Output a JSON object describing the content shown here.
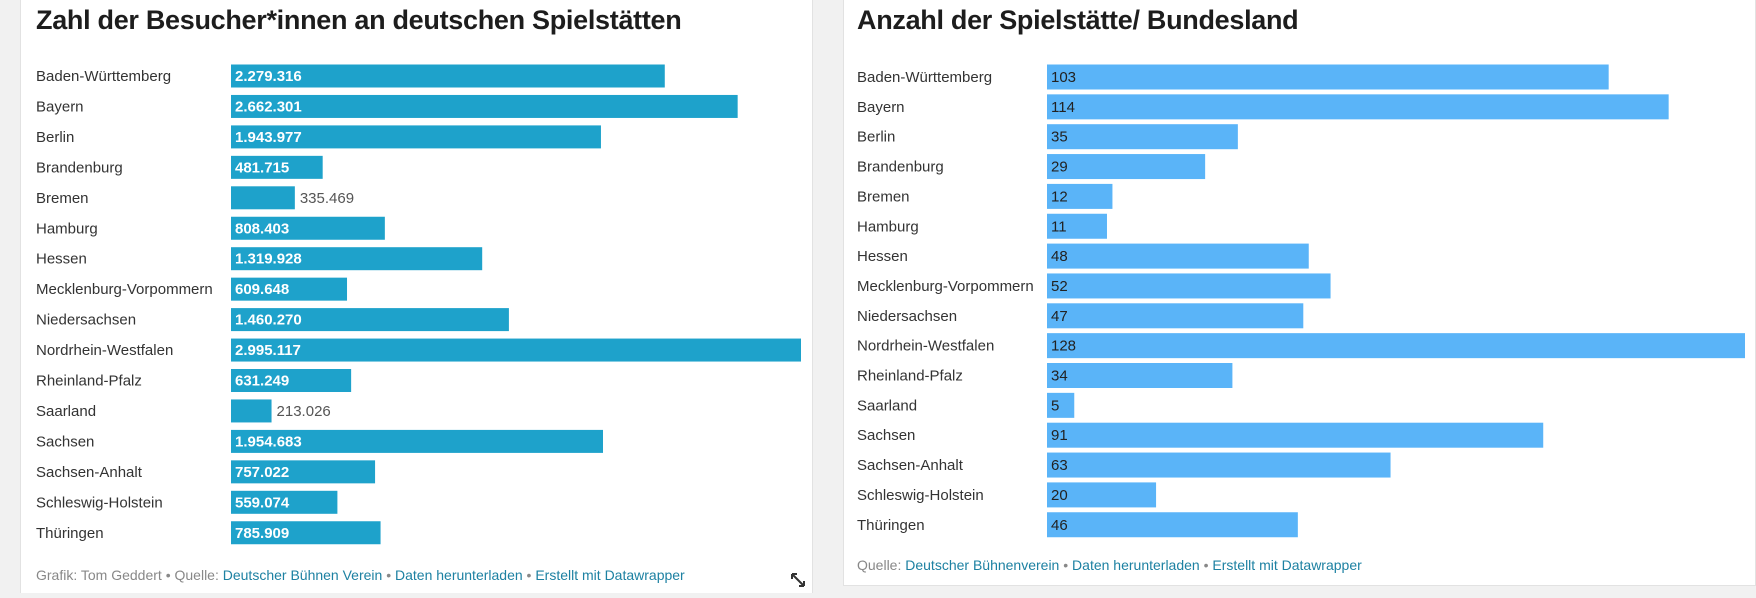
{
  "left": {
    "title": "Zahl der Besucher*innen an deutschen Spielstätten",
    "footer": {
      "credit_prefix": "Grafik: ",
      "credit_name": "Tom Geddert",
      "source_prefix": " • Quelle: ",
      "source_link": "Deutscher Bühnen Verein",
      "separator": " • ",
      "download_link": "Daten herunterladen",
      "created_link": "Erstellt mit Datawrapper"
    },
    "expand_icon": "expand-icon"
  },
  "right": {
    "title": "Anzahl der Spielstätte/ Bundesland",
    "footer": {
      "source_prefix": "Quelle: ",
      "source_link": "Deutscher Bühnenverein",
      "separator": " • ",
      "download_link": "Daten herunterladen",
      "created_link": "Erstellt mit Datawrapper"
    }
  },
  "chart_data": [
    {
      "type": "bar",
      "orientation": "horizontal",
      "title": "Zahl der Besucher*innen an deutschen Spielstätten",
      "bar_color": "#1ea2cb",
      "categories": [
        "Baden-Württemberg",
        "Bayern",
        "Berlin",
        "Brandenburg",
        "Bremen",
        "Hamburg",
        "Hessen",
        "Mecklenburg-Vorpommern",
        "Niedersachsen",
        "Nordrhein-Westfalen",
        "Rheinland-Pfalz",
        "Saarland",
        "Sachsen",
        "Sachsen-Anhalt",
        "Schleswig-Holstein",
        "Thüringen"
      ],
      "values": [
        2279316,
        2662301,
        1943977,
        481715,
        335469,
        808403,
        1319928,
        609648,
        1460270,
        2995117,
        631249,
        213026,
        1954683,
        757022,
        559074,
        785909
      ],
      "labels": [
        "2.279.316",
        "2.662.301",
        "1.943.977",
        "481.715",
        "335.469",
        "808.403",
        "1.319.928",
        "609.648",
        "1.460.270",
        "2.995.117",
        "631.249",
        "213.026",
        "1.954.683",
        "757.022",
        "559.074",
        "785.909"
      ],
      "xlim": [
        0,
        2995117
      ]
    },
    {
      "type": "bar",
      "orientation": "horizontal",
      "title": "Anzahl der Spielstätte/ Bundesland",
      "bar_color": "#5ab4f8",
      "categories": [
        "Baden-Württemberg",
        "Bayern",
        "Berlin",
        "Brandenburg",
        "Bremen",
        "Hamburg",
        "Hessen",
        "Mecklenburg-Vorpommern",
        "Niedersachsen",
        "Nordrhein-Westfalen",
        "Rheinland-Pfalz",
        "Saarland",
        "Sachsen",
        "Sachsen-Anhalt",
        "Schleswig-Holstein",
        "Thüringen"
      ],
      "values": [
        103,
        114,
        35,
        29,
        12,
        11,
        48,
        52,
        47,
        128,
        34,
        5,
        91,
        63,
        20,
        46
      ],
      "labels": [
        "103",
        "114",
        "35",
        "29",
        "12",
        "11",
        "48",
        "52",
        "47",
        "128",
        "34",
        "5",
        "91",
        "63",
        "20",
        "46"
      ],
      "xlim": [
        0,
        128
      ]
    }
  ]
}
